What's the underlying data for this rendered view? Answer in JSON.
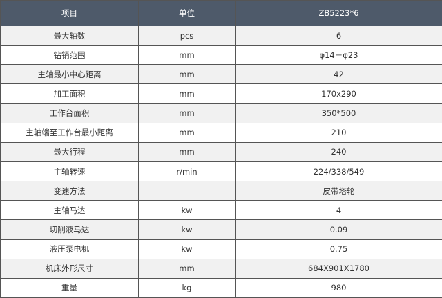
{
  "table": {
    "header": [
      "项目",
      "单位",
      "ZB5223*6"
    ],
    "rows": [
      [
        "最大轴数",
        "pcs",
        "6"
      ],
      [
        "钻销范围",
        "mm",
        "φ14－φ23"
      ],
      [
        "主轴最小中心距离",
        "mm",
        "42"
      ],
      [
        "加工面积",
        "mm",
        "170x290"
      ],
      [
        "工作台面积",
        "mm",
        "350*500"
      ],
      [
        "主轴端至工作台最小距离",
        "mm",
        "210"
      ],
      [
        "最大行程",
        "mm",
        "240"
      ],
      [
        "主轴转速",
        "r/min",
        "224/338/549"
      ],
      [
        "变速方法",
        null,
        "皮带塔轮"
      ],
      [
        "主轴马达",
        "kw",
        "4"
      ],
      [
        "切削液马达",
        "kw",
        "0.09"
      ],
      [
        "液压泵电机",
        "kw",
        "0.75"
      ],
      [
        "机床外形尺寸",
        "mm",
        "684X901X1780"
      ],
      [
        "重量",
        "kg",
        "980"
      ]
    ]
  }
}
